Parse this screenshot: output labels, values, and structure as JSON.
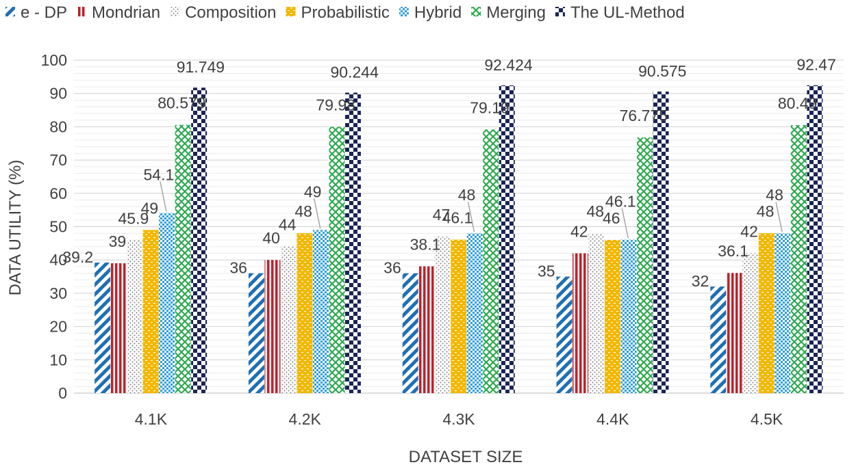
{
  "chart_data": {
    "type": "bar",
    "title": "",
    "xlabel": "DATASET SIZE",
    "ylabel": "DATA UTILITY (%)",
    "ylim": [
      0,
      100
    ],
    "ytick_step": 10,
    "grid": true,
    "legend_position": "top",
    "categories": [
      "4.1K",
      "4.2K",
      "4.3K",
      "4.4K",
      "4.5K"
    ],
    "series": [
      {
        "name": "e - DP",
        "color": "#1f6fb4",
        "pattern": "diagonal-stripes",
        "values": [
          39.2,
          36,
          36,
          35,
          32
        ]
      },
      {
        "name": "Mondrian",
        "color": "#c0202a",
        "pattern": "vertical-stripes",
        "values": [
          39,
          40,
          38.1,
          42,
          36.1
        ]
      },
      {
        "name": "Composition",
        "color": "#7f7f7f",
        "pattern": "dots",
        "values": [
          45.9,
          44,
          47,
          48,
          42
        ]
      },
      {
        "name": "Probabilistic",
        "color": "#f2b800",
        "pattern": "bricks",
        "values": [
          49,
          48,
          46.1,
          46,
          48
        ]
      },
      {
        "name": "Hybrid",
        "color": "#2f9fd8",
        "pattern": "checker",
        "values": [
          54.1,
          49,
          48,
          46.1,
          48
        ]
      },
      {
        "name": "Merging",
        "color": "#2da84e",
        "pattern": "crosses",
        "values": [
          80.579,
          79.98,
          79.19,
          76.775,
          80.49
        ]
      },
      {
        "name": "The UL-Method",
        "color": "#1a2456",
        "pattern": "checkerboard",
        "values": [
          91.749,
          90.244,
          92.424,
          90.575,
          92.47
        ]
      }
    ]
  }
}
